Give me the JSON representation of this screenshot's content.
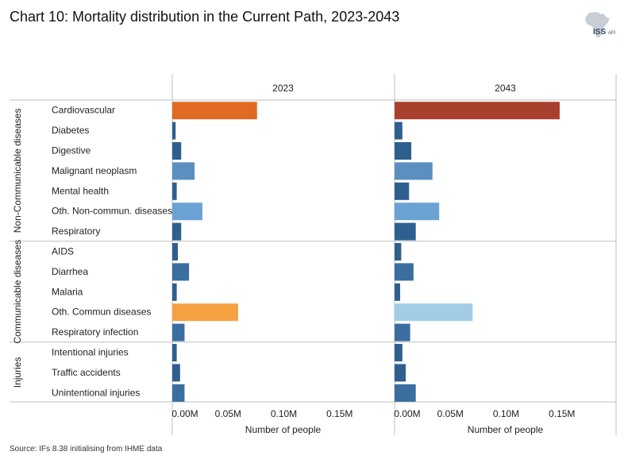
{
  "title": "Chart 10: Mortality distribution in the Current Path, 2023-2043",
  "source": "Source: IFs 8.38 initialising from IHME data",
  "logo_text": "ISS",
  "logo_sub": "AFI",
  "chart_data": {
    "type": "bar",
    "orientation": "horizontal",
    "xlabel": "Number of people",
    "ticks": [
      "0.00M",
      "0.05M",
      "0.10M",
      "0.15M"
    ],
    "tick_values": [
      0,
      0.05,
      0.1,
      0.15
    ],
    "xlim": [
      0,
      0.19
    ],
    "units": "millions of people",
    "panels": [
      {
        "label": "2023",
        "values": [
          0.076,
          0.003,
          0.008,
          0.02,
          0.004,
          0.027,
          0.008,
          0.005,
          0.015,
          0.004,
          0.059,
          0.011,
          0.004,
          0.007,
          0.011
        ],
        "colors": [
          "#e06a22",
          "#2e5f8f",
          "#2e5f8f",
          "#5b8fbf",
          "#2e5f8f",
          "#6aa3d3",
          "#2e5f8f",
          "#2e5f8f",
          "#3a6e9f",
          "#2e5f8f",
          "#f5a142",
          "#3a6e9f",
          "#2e5f8f",
          "#2e5f8f",
          "#3a6e9f"
        ]
      },
      {
        "label": "2043",
        "values": [
          0.148,
          0.007,
          0.015,
          0.034,
          0.013,
          0.04,
          0.019,
          0.006,
          0.017,
          0.005,
          0.07,
          0.014,
          0.007,
          0.01,
          0.019
        ],
        "colors": [
          "#a8402d",
          "#2e5f8f",
          "#2e5f8f",
          "#5b8fbf",
          "#2e5f8f",
          "#6aa3d3",
          "#2e5f8f",
          "#2e5f8f",
          "#3a6e9f",
          "#2e5f8f",
          "#a3cde6",
          "#3a6e9f",
          "#2e5f8f",
          "#2e5f8f",
          "#3a6e9f"
        ]
      }
    ],
    "groups": [
      {
        "name": "Non-Communicable diseases",
        "categories": [
          "Cardiovascular",
          "Diabetes",
          "Digestive",
          "Malignant neoplasm",
          "Mental health",
          "Oth. Non-commun. diseases",
          "Respiratory"
        ]
      },
      {
        "name": "Communicable diseases",
        "categories": [
          "AIDS",
          "Diarrhea",
          "Malaria",
          "Oth. Commun diseases",
          "Respiratory infection"
        ]
      },
      {
        "name": "Injuries",
        "categories": [
          "Intentional injuries",
          "Traffic accidents",
          "Unintentional injuries"
        ]
      }
    ]
  }
}
